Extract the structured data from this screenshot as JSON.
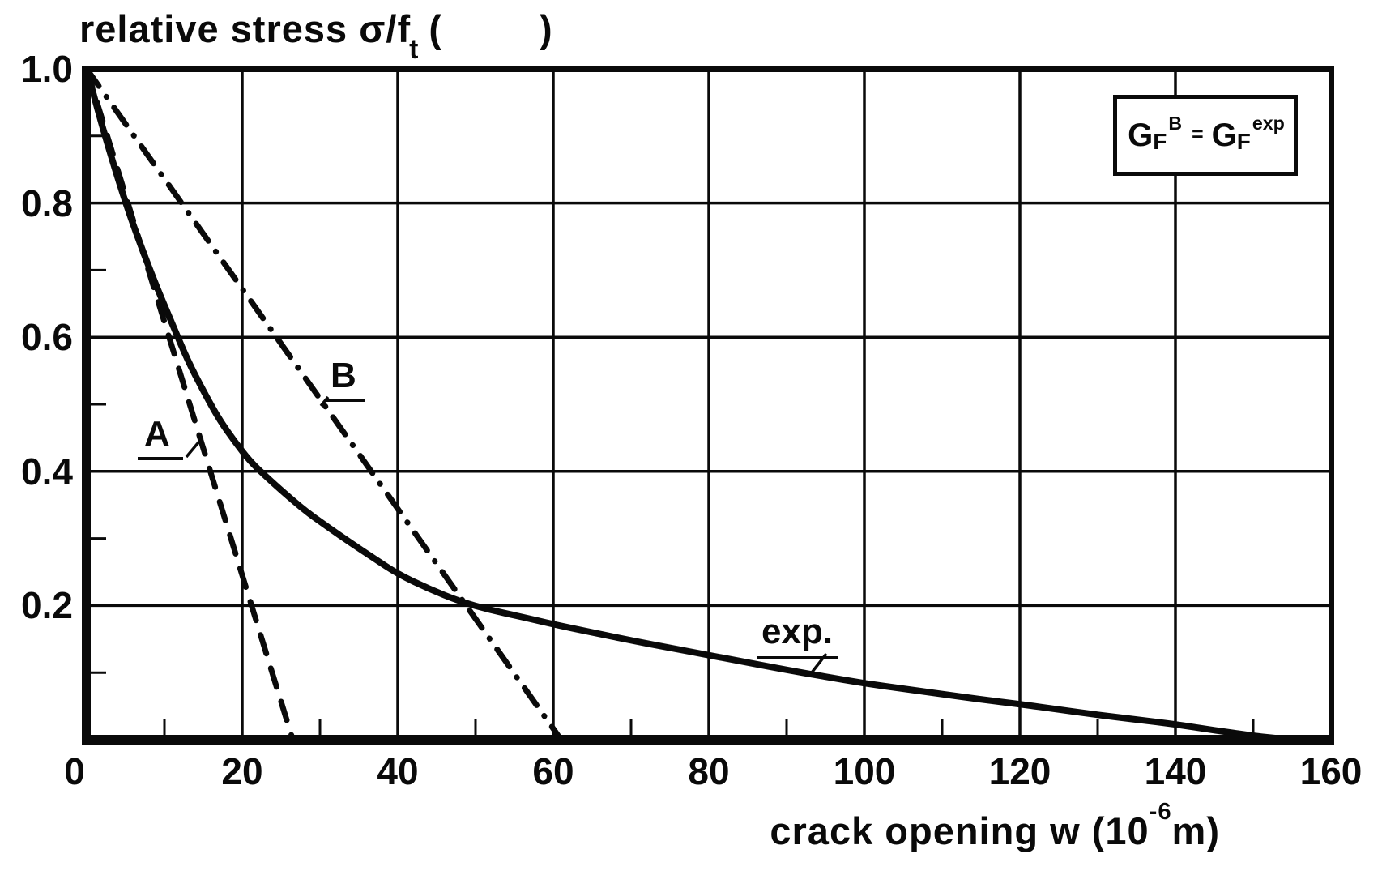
{
  "title": {
    "text": "relative stress σ/f",
    "sub": "t",
    "open_paren": "(",
    "close_paren": ")"
  },
  "x_axis": {
    "label": "crack opening w (10",
    "label_sup": "-6",
    "label_end": "m)"
  },
  "legend": {
    "g1": "G",
    "sub1": "F",
    "sup1": "B",
    "eq": "=",
    "g2": "G",
    "sub2": "F",
    "sup2": "exp"
  },
  "chart_data": {
    "type": "line",
    "title": "relative stress σ/ft ( )",
    "xlabel": "crack opening w (10^-6 m)",
    "ylabel": "relative stress σ/ft",
    "xlim": [
      0,
      160
    ],
    "ylim": [
      0,
      1.0
    ],
    "grid": true,
    "x_ticks": [
      0,
      20,
      40,
      60,
      80,
      100,
      120,
      140,
      160
    ],
    "y_ticks": [
      1.0,
      0.8,
      0.6,
      0.4,
      0.2
    ],
    "x_minor_ticks": [
      10,
      30,
      50,
      70,
      90,
      110,
      130,
      150
    ],
    "y_minor_ticks": [
      0.1,
      0.3,
      0.5,
      0.7,
      0.9
    ],
    "legend_box_text": "G_F^B = G_F^exp",
    "series": [
      {
        "name": "A",
        "style": "dashed",
        "points": [
          [
            0,
            1.0
          ],
          [
            26.5,
            0
          ]
        ]
      },
      {
        "name": "B",
        "style": "dash-dot",
        "points": [
          [
            0,
            1.0
          ],
          [
            61,
            0
          ]
        ]
      },
      {
        "name": "exp.",
        "style": "solid",
        "points": [
          [
            0,
            1.0
          ],
          [
            1.5,
            0.935
          ],
          [
            3,
            0.875
          ],
          [
            5,
            0.8
          ],
          [
            7,
            0.735
          ],
          [
            9,
            0.675
          ],
          [
            11,
            0.62
          ],
          [
            13,
            0.565
          ],
          [
            15,
            0.52
          ],
          [
            17,
            0.478
          ],
          [
            19,
            0.445
          ],
          [
            21,
            0.415
          ],
          [
            23,
            0.393
          ],
          [
            25,
            0.372
          ],
          [
            28,
            0.342
          ],
          [
            31,
            0.317
          ],
          [
            34,
            0.293
          ],
          [
            37,
            0.27
          ],
          [
            40,
            0.247
          ],
          [
            44,
            0.225
          ],
          [
            48,
            0.206
          ],
          [
            52,
            0.193
          ],
          [
            56,
            0.183
          ],
          [
            60,
            0.172
          ],
          [
            65,
            0.16
          ],
          [
            70,
            0.148
          ],
          [
            75,
            0.137
          ],
          [
            80,
            0.126
          ],
          [
            85,
            0.115
          ],
          [
            90,
            0.104
          ],
          [
            95,
            0.094
          ],
          [
            100,
            0.084
          ],
          [
            105,
            0.076
          ],
          [
            110,
            0.068
          ],
          [
            115,
            0.06
          ],
          [
            120,
            0.053
          ],
          [
            125,
            0.045
          ],
          [
            130,
            0.037
          ],
          [
            135,
            0.03
          ],
          [
            140,
            0.023
          ],
          [
            145,
            0.014
          ],
          [
            150,
            0.006
          ],
          [
            153,
            0.002
          ],
          [
            156,
            0.0
          ]
        ]
      }
    ]
  }
}
